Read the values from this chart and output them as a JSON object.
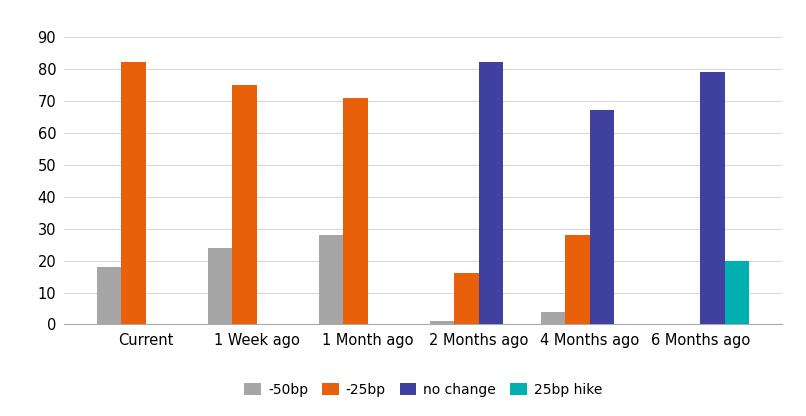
{
  "categories": [
    "Current",
    "1 Week ago",
    "1 Month ago",
    "2 Months ago",
    "4 Months ago",
    "6 Months ago"
  ],
  "series": [
    {
      "label": "-50bp",
      "color": "#a6a6a6",
      "values": [
        18,
        24,
        28,
        1,
        4,
        0
      ]
    },
    {
      "label": "-25bp",
      "color": "#e8600a",
      "values": [
        82,
        75,
        71,
        16,
        28,
        0
      ]
    },
    {
      "label": "no change",
      "color": "#4040a0",
      "values": [
        0,
        0,
        0,
        82,
        67,
        79
      ]
    },
    {
      "label": "25bp hike",
      "color": "#00b0b0",
      "values": [
        0,
        0,
        0,
        0,
        0,
        20
      ]
    }
  ],
  "ylim": [
    0,
    95
  ],
  "yticks": [
    0,
    10,
    20,
    30,
    40,
    50,
    60,
    70,
    80,
    90
  ],
  "grid_color": "#d9d9d9",
  "background_color": "#ffffff",
  "bar_width": 0.22,
  "legend_fontsize": 10,
  "tick_fontsize": 10.5
}
